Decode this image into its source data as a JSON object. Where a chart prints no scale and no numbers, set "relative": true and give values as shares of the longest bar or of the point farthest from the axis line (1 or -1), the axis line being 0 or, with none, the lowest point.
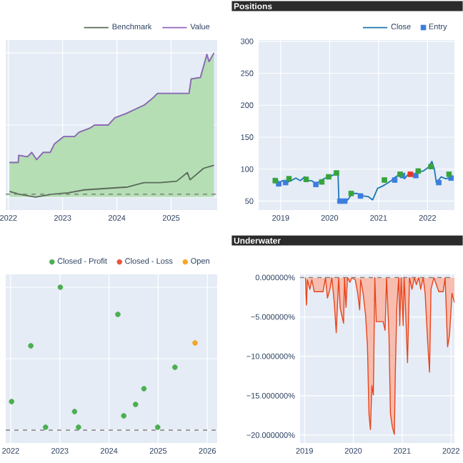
{
  "chart_data": [
    {
      "type": "line",
      "relative": true,
      "grid": true,
      "legend": "top right",
      "tick_labels": "x",
      "xlim": [
        2021.95,
        2025.85
      ],
      "xticks": [
        2022,
        2023,
        2024,
        2025
      ],
      "series": [
        {
          "type": "area",
          "color": "#2ca02c",
          "x": [
            2022.02,
            2022.18,
            2022.19,
            2022.35,
            2022.43,
            2022.52,
            2022.64,
            2022.77,
            2022.85,
            2023.02,
            2023.22,
            2023.3,
            2023.51,
            2023.59,
            2023.84,
            2023.96,
            2024.17,
            2024.34,
            2024.51,
            2024.67,
            2024.75,
            2024.96,
            2025.33,
            2025.37,
            2025.54,
            2025.66,
            2025.7,
            2025.79
          ],
          "values": [
            0.24,
            0.24,
            0.29,
            0.28,
            0.31,
            0.26,
            0.31,
            0.31,
            0.37,
            0.42,
            0.42,
            0.45,
            0.48,
            0.5,
            0.5,
            0.55,
            0.58,
            0.61,
            0.64,
            0.69,
            0.72,
            0.72,
            0.72,
            0.82,
            0.83,
            0.99,
            0.94,
            1.0
          ]
        },
        {
          "name": "Benchmark",
          "type": "line",
          "color": "#5a6b5a",
          "x": [
            2022.02,
            2022.2,
            2022.5,
            2022.8,
            2023.1,
            2023.4,
            2023.8,
            2024.2,
            2024.5,
            2024.8,
            2025.1,
            2025.3,
            2025.35,
            2025.6,
            2025.79
          ],
          "values": [
            0.04,
            0.02,
            0.0,
            0.02,
            0.03,
            0.05,
            0.06,
            0.07,
            0.1,
            0.1,
            0.11,
            0.17,
            0.12,
            0.2,
            0.22
          ]
        },
        {
          "name": "Value",
          "type": "line",
          "color": "#9467bd",
          "x": [
            2022.02,
            2022.18,
            2022.19,
            2022.35,
            2022.43,
            2022.52,
            2022.64,
            2022.77,
            2022.85,
            2023.02,
            2023.22,
            2023.3,
            2023.51,
            2023.59,
            2023.84,
            2023.96,
            2024.17,
            2024.34,
            2024.51,
            2024.67,
            2024.75,
            2024.96,
            2025.33,
            2025.37,
            2025.54,
            2025.66,
            2025.7,
            2025.79
          ],
          "values": [
            0.24,
            0.24,
            0.29,
            0.28,
            0.31,
            0.26,
            0.31,
            0.31,
            0.37,
            0.42,
            0.42,
            0.45,
            0.48,
            0.5,
            0.5,
            0.55,
            0.58,
            0.61,
            0.64,
            0.69,
            0.72,
            0.72,
            0.72,
            0.82,
            0.83,
            0.99,
            0.94,
            1.0
          ]
        }
      ],
      "ref_lines": [
        {
          "axis": "y",
          "value": 0.02,
          "line_style": "dashed",
          "color": "#7f7f7f"
        }
      ]
    },
    {
      "type": "line",
      "title": "Positions",
      "grid": true,
      "legend": "top right",
      "xlim": [
        2018.55,
        2022.55
      ],
      "xticks": [
        2019,
        2020,
        2021,
        2022
      ],
      "ylim": [
        36,
        302
      ],
      "yticks": [
        50,
        100,
        150,
        200,
        250,
        300
      ],
      "series": [
        {
          "name": "Close",
          "type": "line",
          "color": "#1f77b4",
          "x": [
            2018.86,
            2018.94,
            2018.95,
            2019.03,
            2019.12,
            2019.21,
            2019.31,
            2019.4,
            2019.49,
            2019.54,
            2019.63,
            2019.72,
            2019.82,
            2019.91,
            2020.0,
            2020.1,
            2020.17,
            2020.19,
            2020.28,
            2020.37,
            2020.46,
            2020.56,
            2020.7,
            2020.79,
            2020.88,
            2020.98,
            2021.07,
            2021.16,
            2021.26,
            2021.35,
            2021.44,
            2021.53,
            2021.63,
            2021.72,
            2021.81,
            2021.91,
            2022.02,
            2022.09,
            2022.14,
            2022.18,
            2022.28,
            2022.37,
            2022.5
          ],
          "values": [
            86,
            82,
            77,
            82,
            79,
            82,
            86,
            82,
            88,
            82,
            82,
            77,
            82,
            86,
            88,
            92,
            96,
            51,
            48,
            52,
            62,
            62,
            58,
            57,
            52,
            70,
            73,
            77,
            82,
            88,
            92,
            85,
            94,
            90,
            96,
            97,
            103,
            112,
            100,
            79,
            88,
            85,
            87
          ]
        },
        {
          "name": "Entry",
          "type": "scatter",
          "marker": "square",
          "color": "#3b7ddd",
          "x": [
            2018.96,
            2019.1,
            2019.72,
            2020.21,
            2020.31,
            2020.63,
            2021.33,
            2021.49,
            2021.76,
            2022.23,
            2022.48
          ],
          "values": [
            77,
            79,
            76,
            50,
            50,
            58,
            83,
            90,
            90,
            79,
            86
          ]
        },
        {
          "type": "scatter",
          "marker": "square",
          "color": "#37a33c",
          "x": [
            2018.89,
            2019.17,
            2019.52,
            2019.84,
            2019.98,
            2020.14,
            2020.44,
            2021.12,
            2021.44,
            2021.81,
            2022.07,
            2022.44
          ],
          "values": [
            82,
            85,
            84,
            80,
            88,
            94,
            62,
            83,
            92,
            97,
            104,
            92
          ]
        },
        {
          "type": "scatter",
          "marker": "square",
          "color": "#e8372a",
          "x": [
            2021.65
          ],
          "values": [
            92
          ]
        }
      ]
    },
    {
      "type": "scatter",
      "relative": true,
      "grid": true,
      "legend": "top right",
      "tick_labels": "x",
      "xlim": [
        2021.9,
        2026.2
      ],
      "xticks": [
        2022,
        2023,
        2024,
        2025,
        2026
      ],
      "series": [
        {
          "name": "Closed - Profit",
          "marker": "circle",
          "color": "#4caf50",
          "x": [
            2022.02,
            2022.41,
            2022.71,
            2023.01,
            2023.3,
            2023.38,
            2024.18,
            2024.3,
            2024.54,
            2024.71,
            2024.99,
            2025.34
          ],
          "values": [
            0.2,
            0.59,
            0.02,
            1.0,
            0.13,
            0.02,
            0.81,
            0.1,
            0.18,
            0.29,
            0.02,
            0.44
          ]
        },
        {
          "name": "Closed - Loss",
          "marker": "circle",
          "color": "#e8543c"
        },
        {
          "name": "Open",
          "marker": "circle",
          "color": "#f5a623",
          "x": [
            2025.75
          ],
          "values": [
            0.61
          ]
        }
      ],
      "ref_lines": [
        {
          "axis": "y",
          "value": 0,
          "line_style": "dashed",
          "color": "#7f7f7f"
        }
      ]
    },
    {
      "type": "area",
      "title": "Underwater",
      "grid": true,
      "xlim": [
        2018.91,
        2022.07
      ],
      "xticks": [
        2019,
        2020,
        2021,
        2022
      ],
      "ylim": [
        -21,
        0.4
      ],
      "yticks": [
        {
          "value": 0,
          "label": "0.000000%"
        },
        {
          "value": -5,
          "label": "−5.000000%"
        },
        {
          "value": -10,
          "label": "−10.000000%"
        },
        {
          "value": -15,
          "label": "−15.000000%"
        },
        {
          "value": -20,
          "label": "−20.000000%"
        }
      ],
      "series": [
        {
          "color": "#e8451c",
          "x": [
            2019.02,
            2019.04,
            2019.06,
            2019.11,
            2019.15,
            2019.2,
            2019.25,
            2019.38,
            2019.43,
            2019.47,
            2019.52,
            2019.56,
            2019.61,
            2019.65,
            2019.7,
            2019.73,
            2019.76,
            2019.8,
            2019.82,
            2019.85,
            2019.88,
            2019.93,
            2019.97,
            2020.04,
            2020.09,
            2020.13,
            2020.15,
            2020.2,
            2020.25,
            2020.29,
            2020.32,
            2020.35,
            2020.38,
            2020.41,
            2020.44,
            2020.47,
            2020.52,
            2020.61,
            2020.65,
            2020.68,
            2020.73,
            2020.76,
            2020.8,
            2020.84,
            2020.86,
            2020.89,
            2020.93,
            2020.95,
            2020.98,
            2021.02,
            2021.04,
            2021.06,
            2021.11,
            2021.15,
            2021.2,
            2021.25,
            2021.29,
            2021.34,
            2021.38,
            2021.43,
            2021.47,
            2021.52,
            2021.56,
            2021.59,
            2021.65,
            2021.75,
            2021.84,
            2021.88,
            2021.93,
            2021.97,
            2022.02,
            2022.07
          ],
          "values": [
            0,
            -3.5,
            -0.3,
            -1.5,
            -0.3,
            -1.8,
            -1.8,
            -1.8,
            0,
            -2.6,
            -1.5,
            0,
            -3.2,
            -7.0,
            0,
            -3.8,
            -4.7,
            -5.8,
            0,
            -3.8,
            0,
            -0.6,
            0,
            -0.3,
            -2.0,
            -4.1,
            -0.3,
            -2.0,
            -4.7,
            -8.8,
            -17.3,
            -19.3,
            -13.7,
            -14.9,
            0,
            -5.6,
            -5.6,
            -5.6,
            -6.7,
            0,
            -7.3,
            -17.3,
            -19.0,
            -19.9,
            -12.0,
            -3.8,
            0,
            -6.1,
            0,
            -6.1,
            0,
            -2.6,
            -10.8,
            0,
            -1.5,
            0,
            -0.9,
            0,
            -1.5,
            0,
            -2.0,
            -7.9,
            -12.0,
            -1.5,
            0,
            -1.8,
            -1.8,
            0,
            -8.8,
            -7.3,
            -2.0,
            -3.2
          ]
        }
      ],
      "ref_lines": [
        {
          "axis": "y",
          "value": 0,
          "line_style": "dashed",
          "color": "#7f7f7f"
        }
      ]
    }
  ]
}
